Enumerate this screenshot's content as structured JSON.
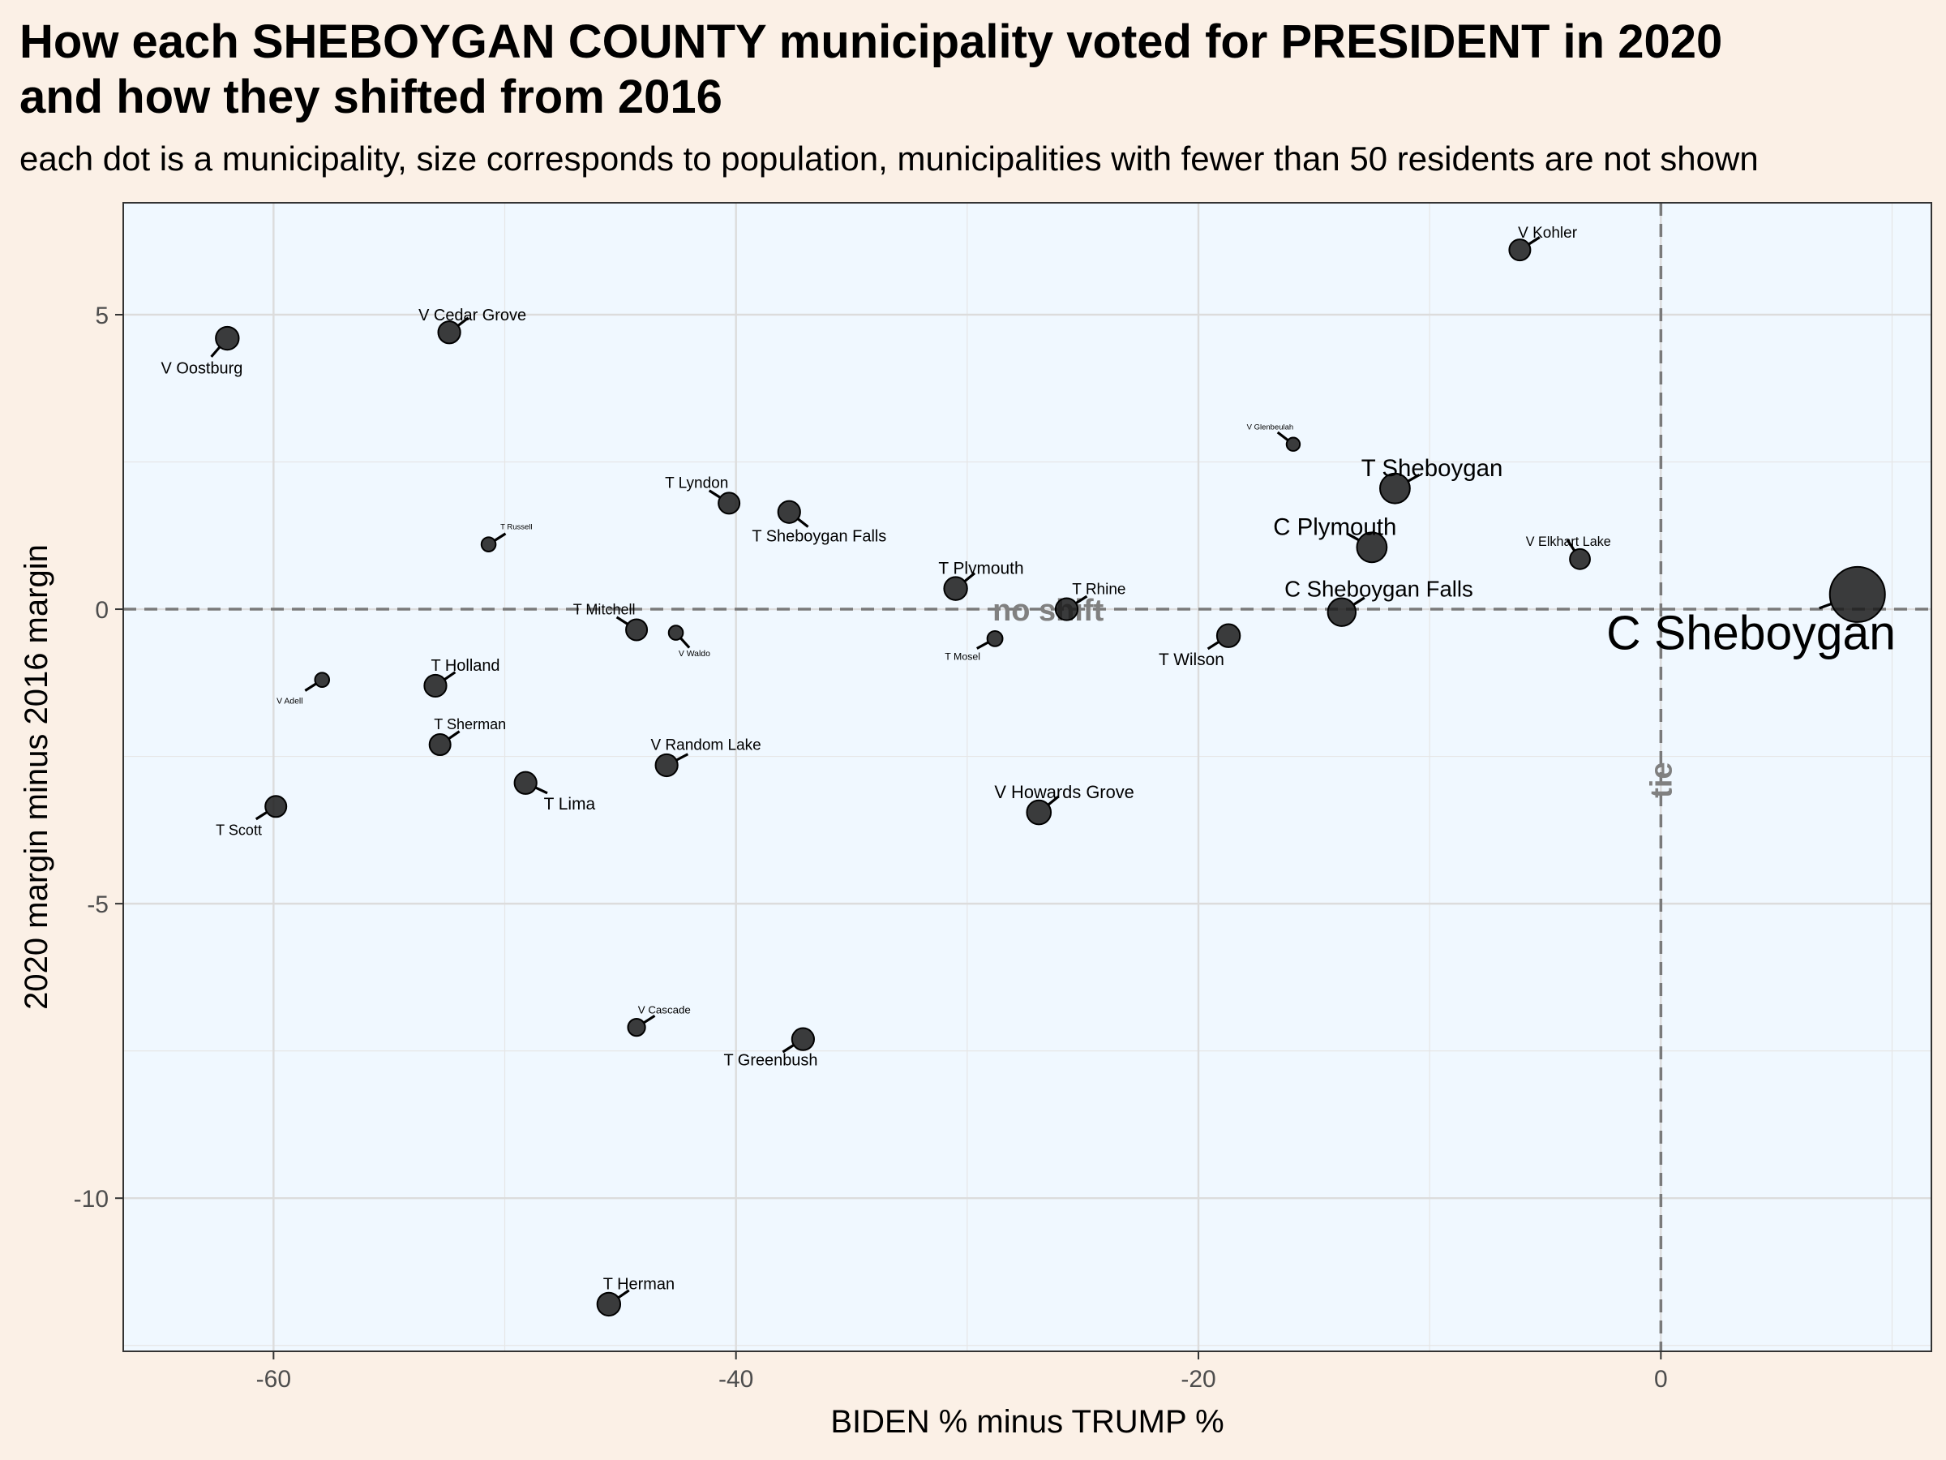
{
  "title_line1": "How each SHEBOYGAN COUNTY municipality voted for PRESIDENT in 2020",
  "title_line2": "and how they shifted from 2016",
  "subtitle": "each dot is a municipality, size corresponds to population, municipalities with fewer than 50 residents are not shown",
  "chart_data": {
    "type": "scatter",
    "xlabel": "BIDEN % minus TRUMP %",
    "ylabel": "2020 margin minus 2016 margin",
    "xlim": [
      -66.5,
      11.7
    ],
    "ylim": [
      -12.6,
      6.9
    ],
    "xticks": [
      -60,
      -40,
      -20,
      0
    ],
    "yticks": [
      5,
      0,
      -5,
      -10
    ],
    "xtick_labels": [
      "-60",
      "-40",
      "-20",
      "0"
    ],
    "ytick_labels": [
      "5",
      "0",
      "-5",
      "-10"
    ],
    "grid": true,
    "reference_lines": [
      {
        "orientation": "horizontal",
        "value": 0,
        "label": "no shift"
      },
      {
        "orientation": "vertical",
        "value": 0,
        "label": "tie"
      }
    ],
    "points": [
      {
        "name": "V Kohler",
        "x": -6.1,
        "y": 6.1,
        "size": 1.5,
        "lx": -4.9,
        "ly": 6.4,
        "fs": 1.0
      },
      {
        "name": "V Cedar Grove",
        "x": -52.4,
        "y": 4.7,
        "size": 1.6,
        "lx": -51.4,
        "ly": 5.0,
        "fs": 1.05
      },
      {
        "name": "V Oostburg",
        "x": -62.0,
        "y": 4.6,
        "size": 1.7,
        "lx": -63.1,
        "ly": 4.1,
        "fs": 1.05
      },
      {
        "name": "V Glenbeulah",
        "x": -15.9,
        "y": 2.8,
        "size": 0.7,
        "lx": -16.9,
        "ly": 3.1,
        "fs": 0.5
      },
      {
        "name": "T Sheboygan",
        "x": -11.5,
        "y": 2.05,
        "size": 2.4,
        "lx": -9.9,
        "ly": 2.4,
        "fs": 1.55
      },
      {
        "name": "T Lyndon",
        "x": -40.3,
        "y": 1.8,
        "size": 1.5,
        "lx": -41.7,
        "ly": 2.15,
        "fs": 1.0
      },
      {
        "name": "T Sheboygan Falls",
        "x": -37.7,
        "y": 1.65,
        "size": 1.6,
        "lx": -36.4,
        "ly": 1.25,
        "fs": 1.05
      },
      {
        "name": "T Russell",
        "x": -50.7,
        "y": 1.1,
        "size": 0.8,
        "lx": -49.5,
        "ly": 1.4,
        "fs": 0.5
      },
      {
        "name": "C Plymouth",
        "x": -12.5,
        "y": 1.05,
        "size": 2.4,
        "lx": -14.1,
        "ly": 1.4,
        "fs": 1.55
      },
      {
        "name": "V Elkhart Lake",
        "x": -3.5,
        "y": 0.85,
        "size": 1.4,
        "lx": -4.0,
        "ly": 1.15,
        "fs": 0.85
      },
      {
        "name": "T Plymouth",
        "x": -30.5,
        "y": 0.35,
        "size": 1.7,
        "lx": -29.4,
        "ly": 0.7,
        "fs": 1.1
      },
      {
        "name": "T Rhine",
        "x": -25.7,
        "y": 0.0,
        "size": 1.6,
        "lx": -24.3,
        "ly": 0.35,
        "fs": 1.0
      },
      {
        "name": "C Sheboygan Falls",
        "x": -13.8,
        "y": -0.05,
        "size": 2.2,
        "lx": -12.2,
        "ly": 0.35,
        "fs": 1.45
      },
      {
        "name": "C Sheboygan",
        "x": 8.5,
        "y": 0.25,
        "size": 5.0,
        "lx": 3.9,
        "ly": -0.4,
        "fs": 3.1
      },
      {
        "name": "T Mitchell",
        "x": -44.3,
        "y": -0.35,
        "size": 1.5,
        "lx": -45.7,
        "ly": 0.0,
        "fs": 0.95
      },
      {
        "name": "V Waldo",
        "x": -42.6,
        "y": -0.4,
        "size": 0.8,
        "lx": -41.8,
        "ly": -0.75,
        "fs": 0.55
      },
      {
        "name": "T Mosel",
        "x": -28.8,
        "y": -0.5,
        "size": 0.9,
        "lx": -30.2,
        "ly": -0.8,
        "fs": 0.65
      },
      {
        "name": "T Wilson",
        "x": -18.7,
        "y": -0.45,
        "size": 1.7,
        "lx": -20.3,
        "ly": -0.85,
        "fs": 1.1
      },
      {
        "name": "V Adell",
        "x": -57.9,
        "y": -1.2,
        "size": 0.8,
        "lx": -59.3,
        "ly": -1.55,
        "fs": 0.55
      },
      {
        "name": "T Holland",
        "x": -53.0,
        "y": -1.3,
        "size": 1.6,
        "lx": -51.7,
        "ly": -0.95,
        "fs": 1.05
      },
      {
        "name": "T Sherman",
        "x": -52.8,
        "y": -2.3,
        "size": 1.5,
        "lx": -51.5,
        "ly": -1.95,
        "fs": 0.95
      },
      {
        "name": "V Random Lake",
        "x": -43.0,
        "y": -2.65,
        "size": 1.6,
        "lx": -41.3,
        "ly": -2.3,
        "fs": 1.0
      },
      {
        "name": "T Lima",
        "x": -49.1,
        "y": -2.95,
        "size": 1.6,
        "lx": -47.2,
        "ly": -3.3,
        "fs": 1.1
      },
      {
        "name": "T Scott",
        "x": -59.9,
        "y": -3.35,
        "size": 1.5,
        "lx": -61.5,
        "ly": -3.75,
        "fs": 0.95
      },
      {
        "name": "V Howards Grove",
        "x": -26.9,
        "y": -3.45,
        "size": 1.8,
        "lx": -25.8,
        "ly": -3.1,
        "fs": 1.15
      },
      {
        "name": "V Cascade",
        "x": -44.3,
        "y": -7.1,
        "size": 1.1,
        "lx": -43.1,
        "ly": -6.8,
        "fs": 0.7
      },
      {
        "name": "T Greenbush",
        "x": -37.1,
        "y": -7.3,
        "size": 1.6,
        "lx": -38.5,
        "ly": -7.65,
        "fs": 1.05
      },
      {
        "name": "T Herman",
        "x": -45.5,
        "y": -11.8,
        "size": 1.7,
        "lx": -44.2,
        "ly": -11.45,
        "fs": 1.05
      }
    ]
  }
}
